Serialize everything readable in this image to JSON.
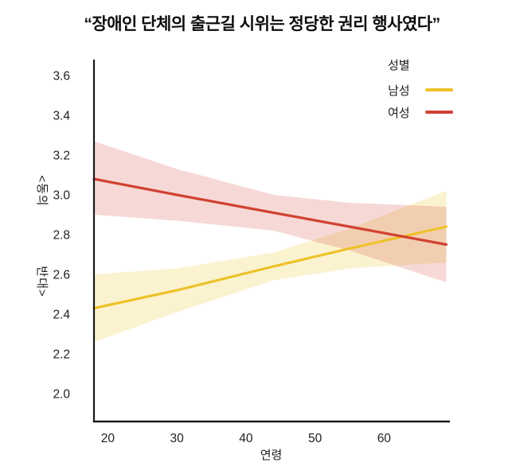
{
  "title": {
    "text": "“장애인 단체의 출근길 시위는 정당한 권리 행사였다”"
  },
  "legend": {
    "title": "성별",
    "items": [
      {
        "label": "남성",
        "color": "#edc227"
      },
      {
        "label": "여성",
        "color": "#d04233"
      }
    ]
  },
  "axes": {
    "x": {
      "label": "연령",
      "ticks": [
        "20",
        "30",
        "40",
        "50",
        "60"
      ]
    },
    "y": {
      "ticks": [
        "2.0",
        "2.2",
        "2.4",
        "2.6",
        "2.8",
        "3.0",
        "3.2",
        "3.4",
        "3.6"
      ],
      "upper_label": "<동의",
      "lower_label": "반대>"
    }
  },
  "chart_data": {
    "type": "line",
    "title": "“장애인 단체의 출근길 시위는 정당한 권리 행사였다”",
    "xlabel": "연령",
    "ylabel": "동의(위) ~ 반대(아래)",
    "xlim": [
      18,
      69.3
    ],
    "ylim": [
      1.86,
      3.68
    ],
    "x_ticks": [
      20,
      30,
      40,
      50,
      60
    ],
    "y_ticks": [
      2.0,
      2.2,
      2.4,
      2.6,
      2.8,
      3.0,
      3.2,
      3.4,
      3.6
    ],
    "grid": false,
    "legend_position": "top-right",
    "legend_title": "성별",
    "series": [
      {
        "name": "남성",
        "color": "#edc227",
        "band_opacity": 0.22,
        "points": [
          {
            "x": 18,
            "y": 2.43,
            "lo": 2.26,
            "hi": 2.6
          },
          {
            "x": 30,
            "y": 2.52,
            "lo": 2.41,
            "hi": 2.63
          },
          {
            "x": 44,
            "y": 2.64,
            "lo": 2.57,
            "hi": 2.71
          },
          {
            "x": 55,
            "y": 2.73,
            "lo": 2.63,
            "hi": 2.83
          },
          {
            "x": 69,
            "y": 2.84,
            "lo": 2.66,
            "hi": 3.02
          }
        ]
      },
      {
        "name": "여성",
        "color": "#d04233",
        "band_opacity": 0.2,
        "points": [
          {
            "x": 18,
            "y": 3.08,
            "lo": 2.9,
            "hi": 3.27
          },
          {
            "x": 30,
            "y": 3.0,
            "lo": 2.87,
            "hi": 3.13
          },
          {
            "x": 44,
            "y": 2.91,
            "lo": 2.82,
            "hi": 3.0
          },
          {
            "x": 55,
            "y": 2.84,
            "lo": 2.72,
            "hi": 2.96
          },
          {
            "x": 69,
            "y": 2.75,
            "lo": 2.56,
            "hi": 2.94
          }
        ]
      }
    ]
  }
}
